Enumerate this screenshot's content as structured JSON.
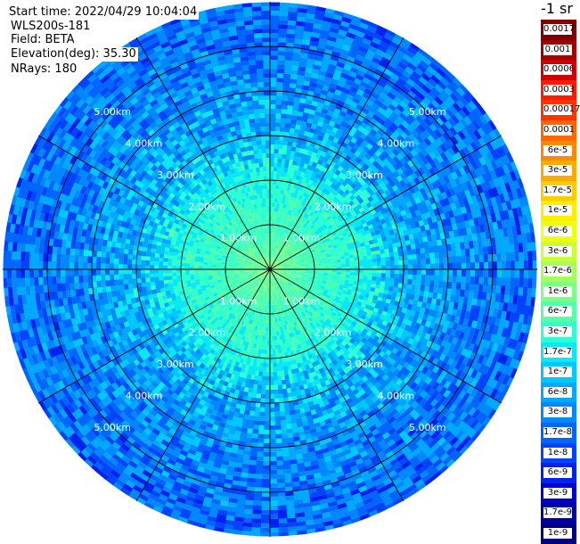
{
  "info": {
    "start_time": "Start time: 2022/04/29 10:04:04",
    "instrument": "WLS200s-181",
    "field": "Field: BETA",
    "elevation": "Elevation(deg): 35.30",
    "nrays": "NRays: 180"
  },
  "colorbar": {
    "title": "-1 sr",
    "entries": [
      {
        "label": "0.0017",
        "color": "#800000"
      },
      {
        "label": "0.001",
        "color": "#a00000"
      },
      {
        "label": "0.0006",
        "color": "#d00000"
      },
      {
        "label": "0.0003",
        "color": "#ff1a00"
      },
      {
        "label": "0.00017",
        "color": "#ff3300"
      },
      {
        "label": "0.0001",
        "color": "#ff6600"
      },
      {
        "label": "6e-5",
        "color": "#ff8800"
      },
      {
        "label": "3e-5",
        "color": "#ffaa00"
      },
      {
        "label": "1.7e-5",
        "color": "#ffcc00"
      },
      {
        "label": "1e-5",
        "color": "#ffee00"
      },
      {
        "label": "6e-6",
        "color": "#eeff11"
      },
      {
        "label": "3e-6",
        "color": "#c8ff37"
      },
      {
        "label": "1.7e-6",
        "color": "#a4ff5b"
      },
      {
        "label": "1e-6",
        "color": "#7dff82"
      },
      {
        "label": "6e-7",
        "color": "#55ffaa"
      },
      {
        "label": "3e-7",
        "color": "#2effd1"
      },
      {
        "label": "1.7e-7",
        "color": "#0ae8f5"
      },
      {
        "label": "1e-7",
        "color": "#00c8ff"
      },
      {
        "label": "6e-8",
        "color": "#00a8ff"
      },
      {
        "label": "3e-8",
        "color": "#0088ff"
      },
      {
        "label": "1.7e-8",
        "color": "#0066ff"
      },
      {
        "label": "1e-8",
        "color": "#0044ff"
      },
      {
        "label": "6e-9",
        "color": "#0022ee"
      },
      {
        "label": "3e-9",
        "color": "#0000cc"
      },
      {
        "label": "1.7e-9",
        "color": "#0000a0"
      },
      {
        "label": "1e-9",
        "color": "#000080"
      }
    ]
  },
  "chart_data": {
    "type": "heatmap",
    "projection": "polar",
    "field": "BETA",
    "elevation_deg": 35.3,
    "nrays": 180,
    "range_rings_km": [
      1,
      2,
      3,
      4,
      5
    ],
    "range_labels": [
      "1.00km",
      "2.00km",
      "3.00km",
      "4.00km",
      "5.00km"
    ],
    "max_range_km": 6,
    "spoke_angles_deg": [
      0,
      30,
      60,
      90,
      120,
      150,
      180,
      210,
      240,
      270,
      300,
      330
    ],
    "radial_profile": [
      {
        "range_km": 0.0,
        "beta": 1e-06
      },
      {
        "range_km": 1.0,
        "beta": 4e-07
      },
      {
        "range_km": 2.0,
        "beta": 2.5e-07
      },
      {
        "range_km": 2.5,
        "beta": 1.3e-07
      },
      {
        "range_km": 3.0,
        "beta": 7e-08
      },
      {
        "range_km": 4.0,
        "beta": 4e-08
      },
      {
        "range_km": 5.0,
        "beta": 2.5e-08
      },
      {
        "range_km": 6.0,
        "beta": 2e-08
      }
    ],
    "colors": {
      "ring": "#000000",
      "spoke": "#000000",
      "label": "#ffffff"
    }
  }
}
